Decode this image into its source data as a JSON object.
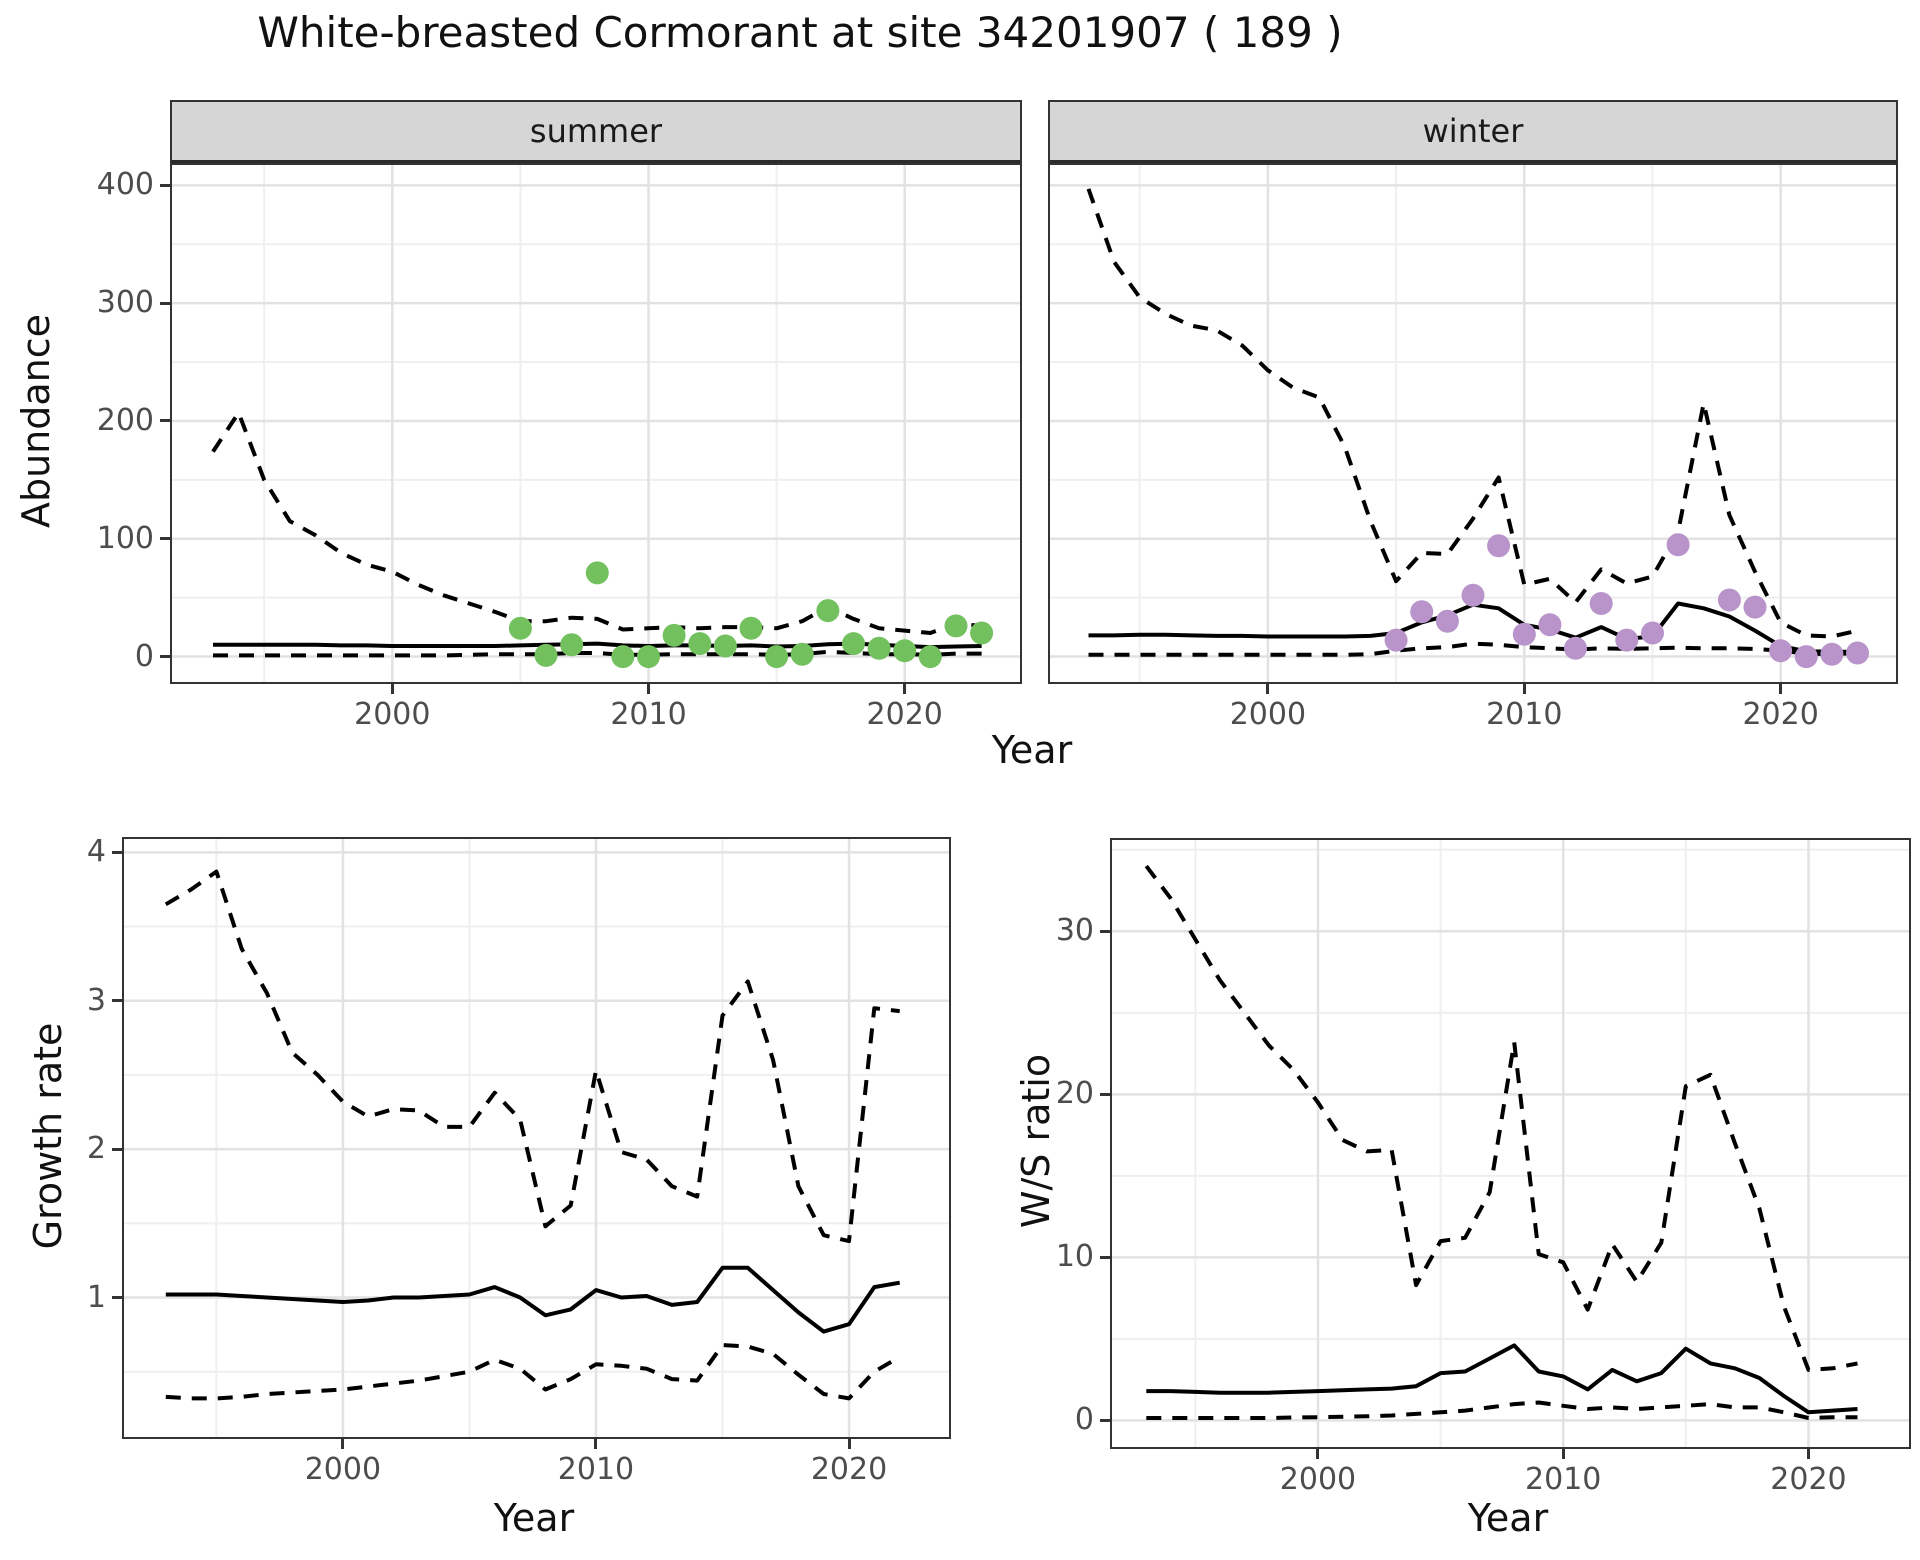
{
  "title": "White-breasted Cormorant at site 34201907 ( 189 )",
  "colors": {
    "summer_points": "#73c05f",
    "winter_points": "#b894ca",
    "fit_line": "#000000",
    "ci_line": "#000000",
    "strip_background": "#d6d6d6"
  },
  "chart_data": [
    {
      "id": "abundance_summer",
      "type": "line",
      "facet": "summer",
      "xlabel": "Year",
      "ylabel": "Abundance",
      "xlim": [
        1991.4,
        2024.5
      ],
      "ylim": [
        -21.6,
        417.3
      ],
      "x_ticks": [
        2000,
        2010,
        2020
      ],
      "x_minor": [
        1995,
        2005,
        2015
      ],
      "y_ticks": [
        0,
        100,
        200,
        300,
        400
      ],
      "y_minor": [
        50,
        150,
        250,
        350
      ],
      "show_y_tick_labels": true,
      "grid": true,
      "legend_position": "none",
      "years": [
        1993,
        1994,
        1995,
        1996,
        1997,
        1998,
        1999,
        2000,
        2001,
        2002,
        2003,
        2004,
        2005,
        2006,
        2007,
        2008,
        2009,
        2010,
        2011,
        2012,
        2013,
        2014,
        2015,
        2016,
        2017,
        2018,
        2019,
        2020,
        2021,
        2022,
        2023
      ],
      "series": [
        {
          "name": "upper_ci",
          "style": "dashed",
          "values": [
            174,
            207,
            150,
            115,
            103,
            88,
            78,
            72,
            61,
            52,
            45,
            38,
            30,
            30,
            33,
            32,
            23,
            24,
            25,
            24,
            25,
            25,
            24,
            30,
            42,
            32,
            24,
            22,
            20,
            28,
            26
          ]
        },
        {
          "name": "fit",
          "style": "solid",
          "values": [
            10,
            10,
            10,
            10,
            10,
            9.5,
            9.5,
            9,
            9,
            9,
            9,
            9,
            9.5,
            10,
            10.5,
            11,
            9.5,
            9,
            9.5,
            9.5,
            9,
            9.5,
            8.5,
            9,
            10.5,
            11,
            10,
            9,
            8,
            8.5,
            9
          ]
        },
        {
          "name": "lower_ci",
          "style": "dashed",
          "values": [
            1,
            1,
            1,
            1,
            1,
            1,
            1,
            1,
            1,
            1,
            1.5,
            2,
            2,
            2,
            3,
            3,
            1.5,
            1.5,
            2,
            2,
            2,
            2,
            1.5,
            2,
            4,
            3,
            2,
            2,
            1.5,
            2.5,
            2.5
          ]
        }
      ],
      "points": {
        "name": "observed_summer_counts",
        "color": "#73c05f",
        "years": [
          2005,
          2006,
          2007,
          2008,
          2009,
          2010,
          2011,
          2012,
          2013,
          2014,
          2015,
          2016,
          2017,
          2018,
          2019,
          2020,
          2021,
          2022,
          2023
        ],
        "values": [
          24,
          1,
          10,
          71,
          0,
          0,
          18,
          11,
          9,
          24,
          0,
          2,
          39,
          11,
          7,
          5,
          0,
          26,
          20
        ]
      }
    },
    {
      "id": "abundance_winter",
      "type": "line",
      "facet": "winter",
      "xlabel": "Year",
      "ylabel": "Abundance",
      "xlim": [
        1991.5,
        2024.5
      ],
      "ylim": [
        -21.6,
        417.3
      ],
      "x_ticks": [
        2000,
        2010,
        2020
      ],
      "x_minor": [
        1995,
        2005,
        2015
      ],
      "y_ticks": [
        0,
        100,
        200,
        300,
        400
      ],
      "y_minor": [
        50,
        150,
        250,
        350
      ],
      "show_y_tick_labels": false,
      "grid": true,
      "legend_position": "none",
      "years": [
        1993,
        1994,
        1995,
        1996,
        1997,
        1998,
        1999,
        2000,
        2001,
        2002,
        2003,
        2004,
        2005,
        2006,
        2007,
        2008,
        2009,
        2010,
        2011,
        2012,
        2013,
        2014,
        2015,
        2016,
        2017,
        2018,
        2019,
        2020,
        2021,
        2022,
        2023
      ],
      "series": [
        {
          "name": "upper_ci",
          "style": "dashed",
          "values": [
            397,
            335,
            305,
            291,
            281,
            277,
            264,
            243,
            228,
            220,
            178,
            115,
            64,
            88,
            87,
            117,
            152,
            61,
            66,
            46,
            74,
            62,
            68,
            106,
            215,
            120,
            72,
            29,
            18,
            17,
            22
          ]
        },
        {
          "name": "fit",
          "style": "solid",
          "values": [
            18,
            18,
            18.5,
            18.5,
            18,
            17.5,
            17.5,
            17,
            17,
            17,
            17,
            17.5,
            20,
            29,
            35,
            44,
            41,
            27,
            23,
            16,
            25,
            15,
            17,
            45,
            41,
            34,
            22,
            9,
            4.5,
            4,
            4
          ]
        },
        {
          "name": "lower_ci",
          "style": "dashed",
          "values": [
            1.5,
            1.5,
            1.5,
            1.5,
            1.5,
            1.5,
            1.5,
            1.5,
            1.5,
            1.5,
            1.5,
            2,
            5,
            7,
            8,
            11,
            10,
            8,
            7,
            6,
            7,
            6.5,
            7,
            7.5,
            7,
            7,
            6.5,
            5,
            2.5,
            2,
            3
          ]
        }
      ],
      "points": {
        "name": "observed_winter_counts",
        "color": "#b894ca",
        "years": [
          2005,
          2006,
          2007,
          2008,
          2009,
          2010,
          2011,
          2012,
          2013,
          2014,
          2015,
          2016,
          2018,
          2019,
          2020,
          2021,
          2022,
          2023
        ],
        "values": [
          14,
          38,
          30,
          52,
          94,
          19,
          27,
          7,
          45,
          14,
          20,
          95,
          48,
          42,
          5,
          0,
          2,
          3
        ]
      }
    },
    {
      "id": "growth_rate",
      "type": "line",
      "facet": null,
      "xlabel": "Year",
      "ylabel": "Growth rate",
      "xlim": [
        1991.35,
        2023.95
      ],
      "ylim": [
        0.06,
        4.09
      ],
      "x_ticks": [
        2000,
        2010,
        2020
      ],
      "x_minor": [
        1995,
        2005,
        2015
      ],
      "y_ticks": [
        1,
        2,
        3,
        4
      ],
      "y_minor": [
        0.5,
        1.5,
        2.5,
        3.5
      ],
      "show_y_tick_labels": true,
      "grid": true,
      "legend_position": "none",
      "years": [
        1993,
        1994,
        1995,
        1996,
        1997,
        1998,
        1999,
        2000,
        2001,
        2002,
        2003,
        2004,
        2005,
        2006,
        2007,
        2008,
        2009,
        2010,
        2011,
        2012,
        2013,
        2014,
        2015,
        2016,
        2017,
        2018,
        2019,
        2020,
        2021,
        2022
      ],
      "series": [
        {
          "name": "upper_ci",
          "style": "dashed",
          "values": [
            3.65,
            3.75,
            3.87,
            3.35,
            3.05,
            2.65,
            2.5,
            2.32,
            2.22,
            2.27,
            2.26,
            2.15,
            2.15,
            2.38,
            2.2,
            1.48,
            1.62,
            2.53,
            1.98,
            1.93,
            1.75,
            1.68,
            2.9,
            3.13,
            2.6,
            1.75,
            1.42,
            1.38,
            2.95,
            2.93
          ]
        },
        {
          "name": "fit",
          "style": "solid",
          "values": [
            1.02,
            1.02,
            1.02,
            1.01,
            1.0,
            0.99,
            0.98,
            0.97,
            0.98,
            1.0,
            1.0,
            1.01,
            1.02,
            1.07,
            1.0,
            0.88,
            0.92,
            1.05,
            1.0,
            1.01,
            0.95,
            0.97,
            1.2,
            1.2,
            1.05,
            0.9,
            0.77,
            0.82,
            1.07,
            1.1
          ]
        },
        {
          "name": "lower_ci",
          "style": "dashed",
          "values": [
            0.33,
            0.32,
            0.32,
            0.33,
            0.35,
            0.36,
            0.37,
            0.38,
            0.4,
            0.42,
            0.44,
            0.47,
            0.5,
            0.58,
            0.52,
            0.38,
            0.45,
            0.55,
            0.54,
            0.52,
            0.45,
            0.44,
            0.68,
            0.67,
            0.62,
            0.48,
            0.35,
            0.32,
            0.5,
            0.6
          ]
        }
      ],
      "points": null
    },
    {
      "id": "ws_ratio",
      "type": "line",
      "facet": null,
      "xlabel": "Year",
      "ylabel": "W/S ratio",
      "xlim": [
        1991.6,
        2024.1
      ],
      "ylim": [
        -1.63,
        35.6
      ],
      "x_ticks": [
        2000,
        2010,
        2020
      ],
      "x_minor": [
        1995,
        2005,
        2015
      ],
      "y_ticks": [
        0,
        10,
        20,
        30
      ],
      "y_minor": [
        5,
        15,
        25,
        35
      ],
      "show_y_tick_labels": true,
      "grid": true,
      "legend_position": "none",
      "years": [
        1993,
        1994,
        1995,
        1996,
        1997,
        1998,
        1999,
        2000,
        2001,
        2002,
        2003,
        2004,
        2005,
        2006,
        2007,
        2008,
        2009,
        2010,
        2011,
        2012,
        2013,
        2014,
        2015,
        2016,
        2017,
        2018,
        2019,
        2020,
        2021,
        2022
      ],
      "series": [
        {
          "name": "upper_ci",
          "style": "dashed",
          "values": [
            34,
            32,
            29.5,
            27,
            25,
            23,
            21.5,
            19.5,
            17.2,
            16.5,
            16.6,
            8.3,
            11,
            11.2,
            14,
            23.2,
            10.2,
            9.7,
            6.8,
            10.8,
            8.5,
            10.9,
            20.5,
            21.2,
            17,
            13,
            7,
            3.1,
            3.2,
            3.5
          ]
        },
        {
          "name": "fit",
          "style": "solid",
          "values": [
            1.8,
            1.8,
            1.75,
            1.7,
            1.7,
            1.7,
            1.75,
            1.8,
            1.85,
            1.9,
            1.95,
            2.1,
            2.9,
            3.0,
            3.8,
            4.6,
            3.0,
            2.7,
            1.9,
            3.1,
            2.4,
            2.9,
            4.4,
            3.5,
            3.2,
            2.6,
            1.5,
            0.5,
            0.6,
            0.7
          ]
        },
        {
          "name": "lower_ci",
          "style": "dashed",
          "values": [
            0.15,
            0.15,
            0.15,
            0.15,
            0.15,
            0.15,
            0.18,
            0.2,
            0.22,
            0.25,
            0.3,
            0.4,
            0.5,
            0.6,
            0.8,
            1.0,
            1.1,
            0.9,
            0.7,
            0.8,
            0.7,
            0.8,
            0.9,
            1.0,
            0.8,
            0.8,
            0.5,
            0.15,
            0.2,
            0.2
          ]
        }
      ],
      "points": null
    }
  ]
}
